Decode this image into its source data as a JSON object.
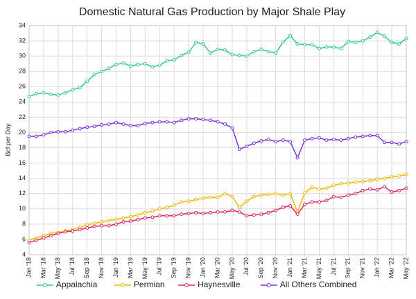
{
  "chart_data": {
    "type": "line",
    "title": "Domestic Natural Gas Production by Major Shale Play",
    "ylabel": "Bcf per Day",
    "categories": [
      "Jan '18",
      null,
      "Mar '18",
      null,
      "May '18",
      null,
      "Jul '18",
      null,
      "Sep '18",
      null,
      "Nov '18",
      null,
      "Jan '19",
      null,
      "Mar '19",
      null,
      "May '19",
      null,
      "Jul '19",
      null,
      "Sep '19",
      null,
      "Nov '19",
      null,
      "Jan '20",
      null,
      "Mar '20",
      null,
      "May '20",
      null,
      "Jul '20",
      null,
      "Sep '20",
      null,
      "Nov '20",
      null,
      "Jan '21",
      null,
      "Mar '21",
      null,
      "May '21",
      null,
      "Jul '21",
      null,
      "Sep '21",
      null,
      "Nov '21",
      null,
      "Jan '22",
      null,
      "Mar '22",
      null,
      "May '22"
    ],
    "series": [
      {
        "name": "Appalachia",
        "color": "#2ecc85",
        "values": [
          24.7,
          25.1,
          25.2,
          25.0,
          24.9,
          25.2,
          25.6,
          25.9,
          26.7,
          27.6,
          28.0,
          28.4,
          28.9,
          29.1,
          28.7,
          28.9,
          29.0,
          28.6,
          28.8,
          29.4,
          29.5,
          30.1,
          30.5,
          31.8,
          31.6,
          30.4,
          30.9,
          30.8,
          30.2,
          30.1,
          30.0,
          30.6,
          30.9,
          30.6,
          30.4,
          31.8,
          32.7,
          31.6,
          31.5,
          31.5,
          31.0,
          31.2,
          31.2,
          31.0,
          31.9,
          31.8,
          32.0,
          32.5,
          33.1,
          32.6,
          31.8,
          31.6,
          32.3
        ]
      },
      {
        "name": "Permian",
        "color": "#f2b700",
        "values": [
          5.9,
          6.2,
          6.5,
          6.8,
          6.9,
          7.1,
          7.3,
          7.6,
          7.9,
          8.1,
          8.3,
          8.5,
          8.6,
          8.8,
          9.0,
          9.2,
          9.5,
          9.7,
          10.0,
          10.2,
          10.5,
          10.9,
          11.0,
          11.2,
          11.4,
          11.5,
          11.5,
          12.0,
          11.6,
          10.2,
          11.0,
          11.6,
          11.8,
          11.9,
          12.0,
          11.8,
          12.0,
          9.6,
          12.1,
          12.8,
          12.6,
          12.7,
          13.1,
          13.3,
          13.4,
          13.5,
          13.6,
          13.7,
          13.9,
          14.0,
          14.2,
          14.3,
          14.5
        ]
      },
      {
        "name": "Haynesville",
        "color": "#e0245e",
        "values": [
          5.6,
          5.9,
          6.2,
          6.5,
          6.8,
          7.0,
          7.1,
          7.3,
          7.5,
          7.7,
          7.8,
          7.8,
          8.0,
          8.3,
          8.4,
          8.6,
          8.8,
          8.9,
          9.1,
          9.1,
          9.1,
          9.3,
          9.4,
          9.5,
          9.4,
          9.5,
          9.6,
          9.6,
          9.8,
          9.6,
          9.1,
          9.2,
          9.3,
          9.5,
          9.8,
          10.2,
          10.4,
          9.3,
          10.6,
          10.9,
          10.9,
          11.1,
          11.6,
          11.5,
          11.8,
          12.0,
          12.4,
          12.6,
          12.5,
          12.9,
          12.2,
          12.4,
          12.7
        ]
      },
      {
        "name": "All Others Combined",
        "color": "#7a2fe0",
        "values": [
          19.5,
          19.5,
          19.7,
          20.0,
          20.1,
          20.1,
          20.3,
          20.5,
          20.7,
          20.8,
          21.0,
          21.1,
          21.3,
          21.1,
          20.9,
          20.9,
          21.2,
          21.3,
          21.4,
          21.4,
          21.3,
          21.6,
          21.8,
          21.8,
          21.7,
          21.6,
          21.4,
          21.1,
          20.6,
          17.8,
          18.2,
          18.6,
          18.9,
          19.1,
          18.8,
          19.0,
          18.8,
          16.7,
          19.0,
          19.2,
          19.3,
          19.0,
          19.1,
          19.0,
          19.2,
          19.4,
          19.5,
          19.6,
          19.6,
          18.7,
          18.7,
          18.5,
          18.8
        ]
      }
    ],
    "ylim": [
      4,
      34
    ],
    "yticks": [
      4,
      6,
      8,
      10,
      12,
      14,
      16,
      18,
      20,
      22,
      24,
      26,
      28,
      30,
      32,
      34
    ],
    "grid": true,
    "legend": "bottom"
  }
}
